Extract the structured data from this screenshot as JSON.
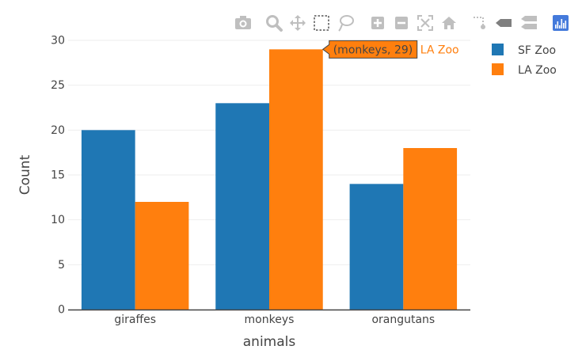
{
  "modebar": {
    "buttons": [
      {
        "name": "camera-icon",
        "title": "Download plot as a png"
      },
      {
        "name": "zoom-icon",
        "title": "Zoom"
      },
      {
        "name": "pan-icon",
        "title": "Pan"
      },
      {
        "name": "box-select-icon",
        "title": "Box Select"
      },
      {
        "name": "lasso-select-icon",
        "title": "Lasso Select"
      },
      {
        "name": "zoom-in-icon",
        "title": "Zoom in"
      },
      {
        "name": "zoom-out-icon",
        "title": "Zoom out"
      },
      {
        "name": "autoscale-icon",
        "title": "Autoscale"
      },
      {
        "name": "home-icon",
        "title": "Reset axes"
      },
      {
        "name": "spike-lines-icon",
        "title": "Toggle Spike Lines"
      },
      {
        "name": "hover-closest-icon",
        "title": "Show closest data on hover"
      },
      {
        "name": "hover-compare-icon",
        "title": "Compare data on hover"
      },
      {
        "name": "plotly-logo-icon",
        "title": "Produced with Plotly"
      }
    ],
    "icon_color": "#bfbfbf",
    "logo_color": "#447adb"
  },
  "chart_data": {
    "type": "bar",
    "barmode": "group",
    "categories": [
      "giraffes",
      "monkeys",
      "orangutans"
    ],
    "series": [
      {
        "name": "SF Zoo",
        "values": [
          20,
          23,
          14
        ],
        "color": "#1f77b4"
      },
      {
        "name": "LA Zoo",
        "values": [
          12,
          29,
          18
        ],
        "color": "#ff7f0e"
      }
    ],
    "xlabel": "animals",
    "ylabel": "Count",
    "ylim": [
      0,
      30
    ],
    "yticks": [
      0,
      5,
      10,
      15,
      20,
      25,
      30
    ],
    "grid": true,
    "legend": "top-right",
    "hover": {
      "category_index": 1,
      "series_index": 1,
      "text": "(monkeys, 29)",
      "series_label": "LA Zoo"
    }
  }
}
